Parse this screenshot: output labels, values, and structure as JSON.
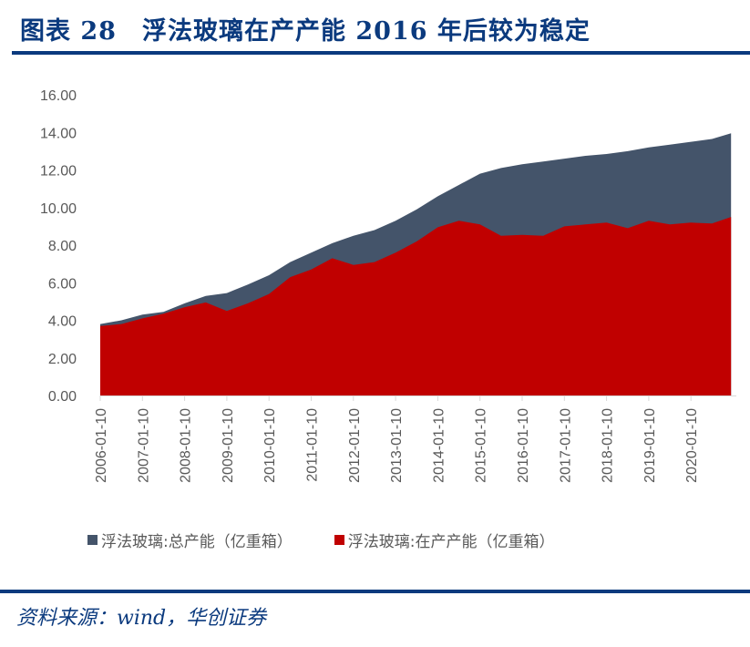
{
  "header": {
    "title": "图表 28　浮法玻璃在产产能 2016 年后较为稳定"
  },
  "legend": {
    "items": [
      {
        "label": "浮法玻璃:总产能（亿重箱）",
        "color": "#44546a"
      },
      {
        "label": "浮法玻璃:在产产能（亿重箱）",
        "color": "#c00000"
      }
    ]
  },
  "footer": {
    "source": "资料来源：wind，华创证券"
  },
  "chart_data": {
    "type": "area",
    "title": "浮法玻璃在产产能 2016 年后较为稳定",
    "xlabel": "",
    "ylabel": "",
    "ylim": [
      0,
      16
    ],
    "yticks": [
      "0.00",
      "2.00",
      "4.00",
      "6.00",
      "8.00",
      "10.00",
      "12.00",
      "14.00",
      "16.00"
    ],
    "xticks": [
      "2006-01-10",
      "2007-01-10",
      "2008-01-10",
      "2009-01-10",
      "2010-01-10",
      "2011-01-10",
      "2012-01-10",
      "2013-01-10",
      "2014-01-10",
      "2015-01-10",
      "2016-01-10",
      "2017-01-10",
      "2018-01-10",
      "2019-01-10",
      "2020-01-10"
    ],
    "grid": false,
    "legend_position": "bottom",
    "x": [
      2006.0,
      2006.5,
      2007.0,
      2007.5,
      2008.0,
      2008.5,
      2009.0,
      2009.5,
      2010.0,
      2010.5,
      2011.0,
      2011.5,
      2012.0,
      2012.5,
      2013.0,
      2013.5,
      2014.0,
      2014.5,
      2015.0,
      2015.5,
      2016.0,
      2016.5,
      2017.0,
      2017.5,
      2018.0,
      2018.5,
      2019.0,
      2019.5,
      2020.0,
      2020.5,
      2020.95
    ],
    "series": [
      {
        "name": "浮法玻璃:总产能（亿重箱）",
        "color": "#44546a",
        "values": [
          3.8,
          4.0,
          4.3,
          4.45,
          4.9,
          5.3,
          5.45,
          5.9,
          6.4,
          7.1,
          7.6,
          8.1,
          8.5,
          8.8,
          9.3,
          9.9,
          10.6,
          11.2,
          11.8,
          12.1,
          12.3,
          12.45,
          12.6,
          12.75,
          12.85,
          13.0,
          13.2,
          13.35,
          13.5,
          13.65,
          13.95
        ]
      },
      {
        "name": "浮法玻璃:在产产能（亿重箱）",
        "color": "#c00000",
        "values": [
          3.7,
          3.8,
          4.1,
          4.35,
          4.7,
          4.95,
          4.5,
          4.9,
          5.4,
          6.3,
          6.7,
          7.3,
          6.95,
          7.1,
          7.6,
          8.2,
          8.95,
          9.3,
          9.1,
          8.5,
          8.55,
          8.5,
          9.0,
          9.1,
          9.2,
          8.9,
          9.3,
          9.1,
          9.2,
          9.15,
          9.5
        ]
      }
    ]
  }
}
